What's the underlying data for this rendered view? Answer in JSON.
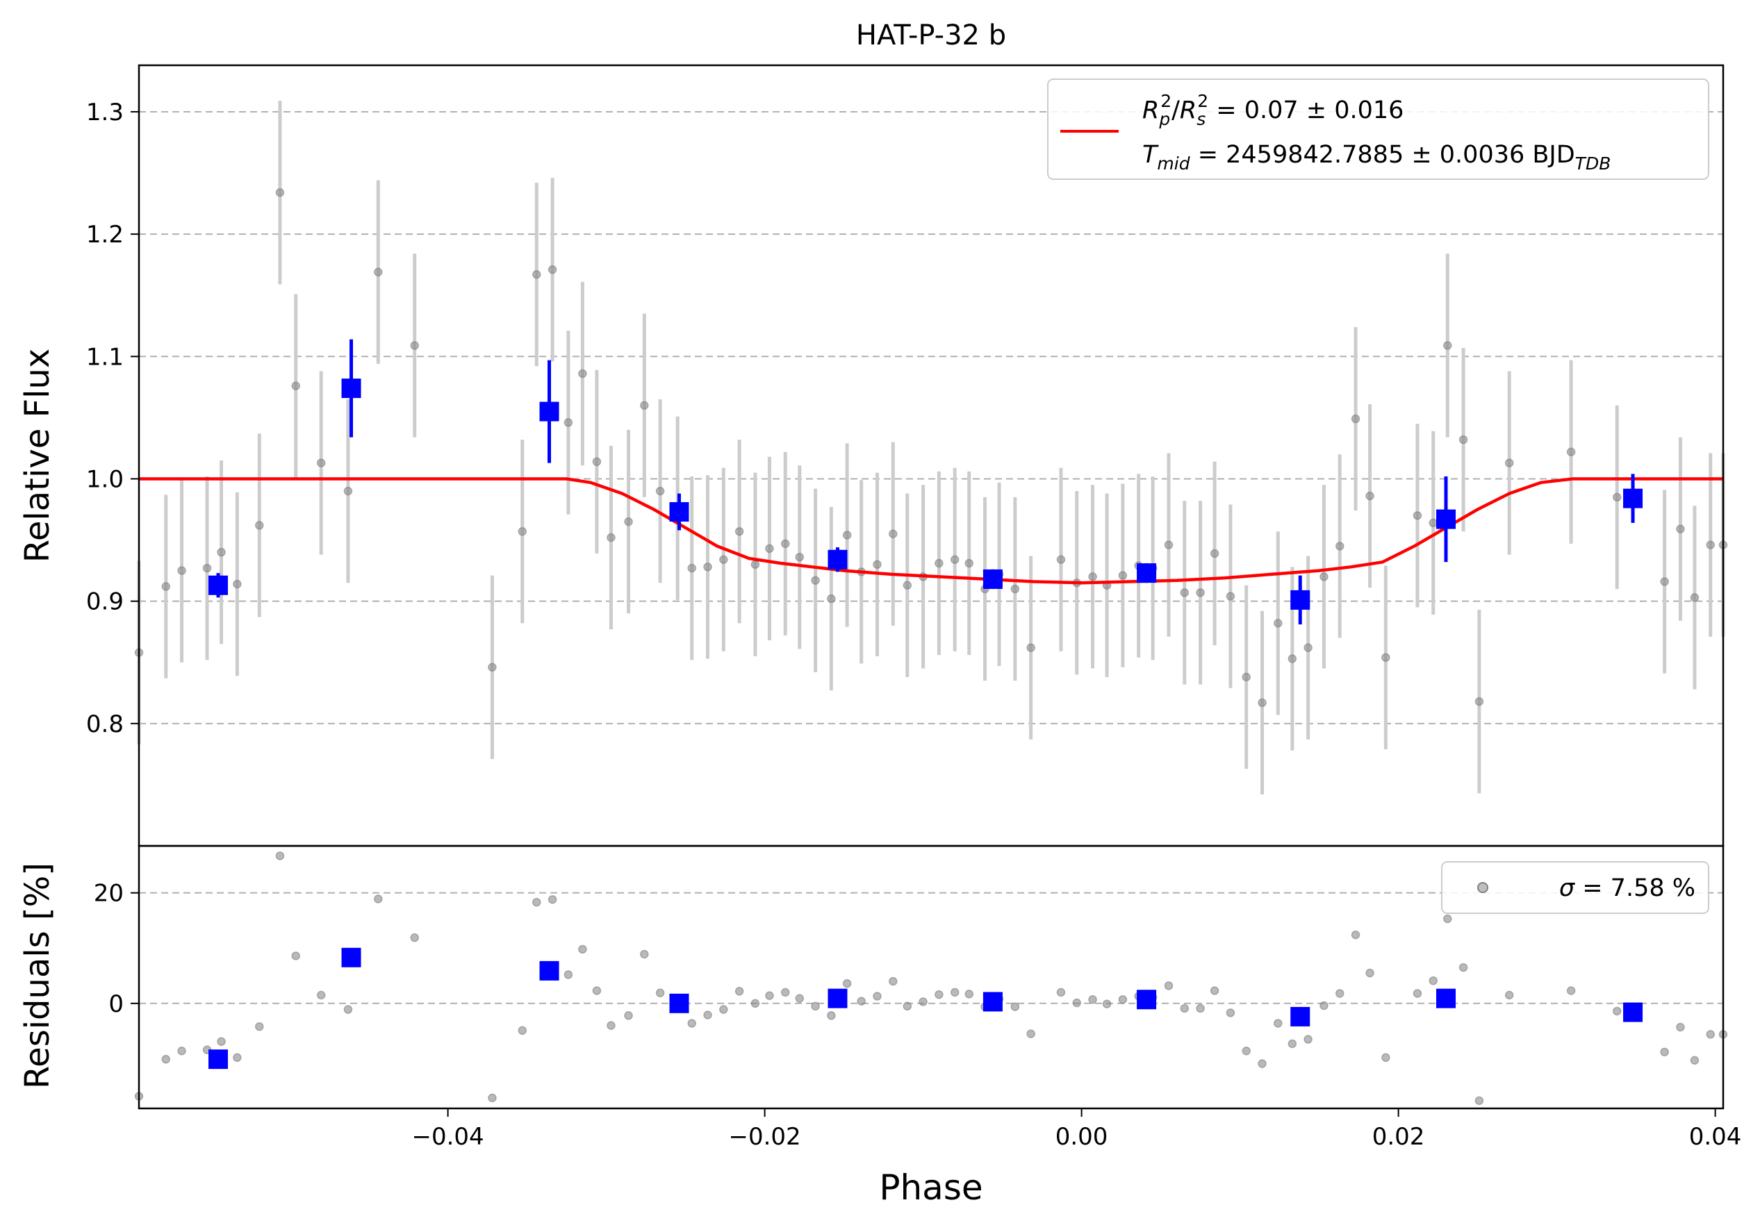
{
  "chart_data": [
    {
      "type": "scatter",
      "panel": "top",
      "title": "HAT-P-32 b",
      "xlabel": "",
      "ylabel": "Relative Flux",
      "xlim": [
        -0.0595,
        0.0405
      ],
      "ylim": [
        0.7,
        1.338
      ],
      "grid": "horizontal dashed",
      "legend_position": "top-right",
      "legend": {
        "line1": "R_p^2/R_s^2 = 0.07 ± 0.016",
        "line2": "T_mid = 2459842.7885 ± 0.0036 BJD_TDB"
      },
      "yticks": [
        0.8,
        0.9,
        1.0,
        1.1,
        1.2,
        1.3
      ],
      "ytick_labels": [
        "0.8",
        "0.9",
        "1.0",
        "1.1",
        "1.2",
        "1.3"
      ],
      "series": [
        {
          "kind": "raw_points",
          "color": "#808080",
          "errcolor": "#cccccc",
          "x": [
            -0.0595,
            -0.0578,
            -0.0568,
            -0.0552,
            -0.0543,
            -0.0533,
            -0.0519,
            -0.0506,
            -0.0496,
            -0.048,
            -0.0463,
            -0.0444,
            -0.0421,
            -0.0372,
            -0.0353,
            -0.0344,
            -0.0334,
            -0.0324,
            -0.0315,
            -0.0306,
            -0.0297,
            -0.0286,
            -0.0276,
            -0.0266,
            -0.0255,
            -0.0246,
            -0.0236,
            -0.0226,
            -0.0216,
            -0.0206,
            -0.0197,
            -0.0187,
            -0.0178,
            -0.0168,
            -0.0158,
            -0.0148,
            -0.0139,
            -0.0129,
            -0.0119,
            -0.011,
            -0.01,
            -0.009,
            -0.008,
            -0.0071,
            -0.0061,
            -0.0052,
            -0.0042,
            -0.0032,
            -0.0013,
            -0.0003,
            0.0007,
            0.0016,
            0.0026,
            0.0036,
            0.0045,
            0.0055,
            0.0065,
            0.0075,
            0.0084,
            0.0094,
            0.0104,
            0.0114,
            0.0124,
            0.0133,
            0.0143,
            0.0153,
            0.0163,
            0.0173,
            0.0182,
            0.0192,
            0.0212,
            0.0222,
            0.0231,
            0.0241,
            0.0251,
            0.027,
            0.0309,
            0.0338,
            0.0368,
            0.0378,
            0.0387,
            0.0397,
            0.0405
          ],
          "y": [
            0.858,
            0.912,
            0.925,
            0.927,
            0.94,
            0.914,
            0.962,
            1.234,
            1.076,
            1.013,
            0.99,
            1.169,
            1.109,
            0.846,
            0.957,
            1.167,
            1.171,
            1.046,
            1.086,
            1.014,
            0.952,
            0.965,
            1.06,
            0.99,
            0.976,
            0.927,
            0.928,
            0.934,
            0.957,
            0.93,
            0.943,
            0.947,
            0.936,
            0.917,
            0.902,
            0.954,
            0.924,
            0.93,
            0.955,
            0.913,
            0.92,
            0.931,
            0.934,
            0.931,
            0.91,
            0.922,
            0.91,
            0.862,
            0.934,
            0.915,
            0.92,
            0.913,
            0.921,
            0.929,
            0.927,
            0.946,
            0.907,
            0.907,
            0.939,
            0.904,
            0.838,
            0.817,
            0.882,
            0.853,
            0.862,
            0.92,
            0.945,
            1.049,
            0.986,
            0.854,
            0.97,
            0.964,
            1.109,
            1.032,
            0.818,
            1.013,
            1.022,
            0.985,
            0.916,
            0.959,
            0.903,
            0.946,
            0.946
          ],
          "yerr": [
            0.075,
            0.075,
            0.075,
            0.075,
            0.075,
            0.075,
            0.075,
            0.075,
            0.075,
            0.075,
            0.075,
            0.075,
            0.075,
            0.075,
            0.075,
            0.075,
            0.075,
            0.075,
            0.075,
            0.075,
            0.075,
            0.075,
            0.075,
            0.075,
            0.075,
            0.075,
            0.075,
            0.075,
            0.075,
            0.075,
            0.075,
            0.075,
            0.075,
            0.075,
            0.075,
            0.075,
            0.075,
            0.075,
            0.075,
            0.075,
            0.075,
            0.075,
            0.075,
            0.075,
            0.075,
            0.075,
            0.075,
            0.075,
            0.075,
            0.075,
            0.075,
            0.075,
            0.075,
            0.075,
            0.075,
            0.075,
            0.075,
            0.075,
            0.075,
            0.075,
            0.075,
            0.075,
            0.075,
            0.075,
            0.075,
            0.075,
            0.075,
            0.075,
            0.075,
            0.075,
            0.075,
            0.075,
            0.075,
            0.075,
            0.075,
            0.075,
            0.075,
            0.075,
            0.075,
            0.075,
            0.075,
            0.075,
            0.075
          ]
        },
        {
          "kind": "binned_points",
          "color": "#0000ff",
          "x": [
            -0.0545,
            -0.0461,
            -0.0336,
            -0.0254,
            -0.0154,
            -0.0056,
            0.0041,
            0.0138,
            0.023,
            0.0348
          ],
          "y": [
            0.913,
            1.074,
            1.055,
            0.973,
            0.934,
            0.918,
            0.923,
            0.901,
            0.967,
            0.984
          ],
          "yerr": [
            0.01,
            0.04,
            0.042,
            0.015,
            0.01,
            0.008,
            0.008,
            0.02,
            0.035,
            0.02
          ]
        },
        {
          "kind": "model_curve",
          "color": "#ff0000",
          "x": [
            -0.0595,
            -0.0325,
            -0.031,
            -0.029,
            -0.027,
            -0.025,
            -0.023,
            -0.021,
            -0.019,
            -0.017,
            -0.015,
            -0.012,
            -0.009,
            -0.006,
            -0.003,
            0.0,
            0.003,
            0.006,
            0.009,
            0.012,
            0.015,
            0.017,
            0.019,
            0.021,
            0.023,
            0.025,
            0.027,
            0.029,
            0.031,
            0.0325,
            0.0405
          ],
          "y": [
            1.0,
            1.0,
            0.997,
            0.988,
            0.975,
            0.96,
            0.945,
            0.935,
            0.931,
            0.928,
            0.925,
            0.922,
            0.92,
            0.918,
            0.916,
            0.915,
            0.916,
            0.917,
            0.919,
            0.922,
            0.925,
            0.928,
            0.932,
            0.945,
            0.96,
            0.975,
            0.988,
            0.997,
            1.0,
            1.0,
            1.0
          ]
        }
      ]
    },
    {
      "type": "scatter",
      "panel": "bottom",
      "xlabel": "Phase",
      "ylabel": "Residuals [%]",
      "xlim": [
        -0.0595,
        0.0405
      ],
      "ylim": [
        -19,
        28.5
      ],
      "grid": "horizontal dashed",
      "legend_position": "top-right",
      "legend": {
        "line1": "σ = 7.58 %"
      },
      "xticks": [
        -0.04,
        -0.02,
        0.0,
        0.02,
        0.04
      ],
      "xtick_labels": [
        "−0.04",
        "−0.02",
        "0.00",
        "0.02",
        "0.04"
      ],
      "yticks": [
        0,
        20
      ],
      "ytick_labels": [
        "0",
        "20"
      ],
      "series": [
        {
          "kind": "raw_points",
          "color": "#808080",
          "x": [
            -0.0595,
            -0.0578,
            -0.0568,
            -0.0552,
            -0.0543,
            -0.0533,
            -0.0519,
            -0.0506,
            -0.0496,
            -0.048,
            -0.0463,
            -0.0444,
            -0.0421,
            -0.0372,
            -0.0353,
            -0.0344,
            -0.0334,
            -0.0324,
            -0.0315,
            -0.0306,
            -0.0297,
            -0.0286,
            -0.0276,
            -0.0266,
            -0.0255,
            -0.0246,
            -0.0236,
            -0.0226,
            -0.0216,
            -0.0206,
            -0.0197,
            -0.0187,
            -0.0178,
            -0.0168,
            -0.0158,
            -0.0148,
            -0.0139,
            -0.0129,
            -0.0119,
            -0.011,
            -0.01,
            -0.009,
            -0.008,
            -0.0071,
            -0.0061,
            -0.0052,
            -0.0042,
            -0.0032,
            -0.0013,
            -0.0003,
            0.0007,
            0.0016,
            0.0026,
            0.0036,
            0.0045,
            0.0055,
            0.0065,
            0.0075,
            0.0084,
            0.0094,
            0.0104,
            0.0114,
            0.0124,
            0.0133,
            0.0143,
            0.0153,
            0.0163,
            0.0173,
            0.0182,
            0.0192,
            0.0212,
            0.0222,
            0.0231,
            0.0241,
            0.0251,
            0.027,
            0.0309,
            0.0338,
            0.0368,
            0.0378,
            0.0387,
            0.0397,
            0.0405
          ],
          "y": [
            -16.8,
            -10.1,
            -8.6,
            -8.4,
            -6.9,
            -9.8,
            -4.2,
            26.7,
            8.6,
            1.5,
            -1.1,
            18.9,
            11.9,
            -17.1,
            -4.9,
            18.3,
            18.8,
            5.2,
            9.8,
            2.3,
            -4.0,
            -2.2,
            8.9,
            1.9,
            0.9,
            -3.6,
            -2.1,
            -1.1,
            2.2,
            0.0,
            1.4,
            2.0,
            0.9,
            -0.5,
            -2.2,
            3.6,
            0.4,
            1.3,
            4.0,
            -0.5,
            0.3,
            1.6,
            2.0,
            1.7,
            -0.6,
            0.8,
            -0.6,
            -5.5,
            2.0,
            0.1,
            0.7,
            -0.1,
            0.7,
            1.3,
            1.1,
            3.2,
            -0.9,
            -0.9,
            2.3,
            -1.7,
            -8.6,
            -10.9,
            -3.6,
            -7.3,
            -6.5,
            -0.4,
            1.8,
            12.4,
            5.5,
            -9.8,
            1.8,
            4.1,
            15.3,
            6.5,
            -17.6,
            1.5,
            2.3,
            -1.4,
            -8.8,
            -4.3,
            -10.3,
            -5.6,
            -5.6
          ]
        },
        {
          "kind": "binned_points",
          "color": "#0000ff",
          "x": [
            -0.0545,
            -0.0461,
            -0.0336,
            -0.0254,
            -0.0154,
            -0.0056,
            0.0041,
            0.0138,
            0.023,
            0.0348
          ],
          "y": [
            -10.1,
            8.3,
            5.9,
            0.0,
            0.9,
            0.3,
            0.7,
            -2.4,
            0.9,
            -1.6
          ]
        }
      ]
    }
  ]
}
